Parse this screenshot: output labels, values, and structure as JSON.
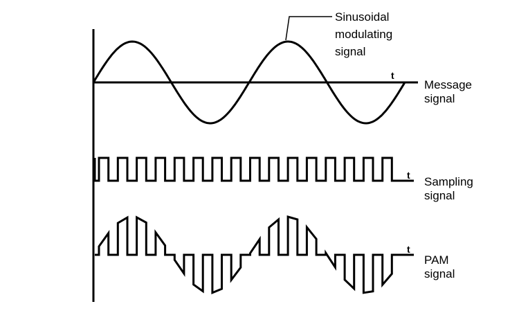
{
  "annotation": {
    "line1": "Sinusoidal",
    "line2": "modulating",
    "line3": "signal"
  },
  "message": {
    "line1": "Message",
    "line2": "signal",
    "t": "t"
  },
  "sampling": {
    "line1": "Sampling",
    "line2": "signal",
    "t": "t"
  },
  "pam": {
    "line1": "PAM",
    "line2": "signal",
    "t": "t"
  },
  "colors": {
    "stroke": "#000000",
    "background": "#ffffff"
  },
  "signal_model": {
    "sine_cycles": 2,
    "pulse_count": 16,
    "pulse_duty": 0.5
  }
}
